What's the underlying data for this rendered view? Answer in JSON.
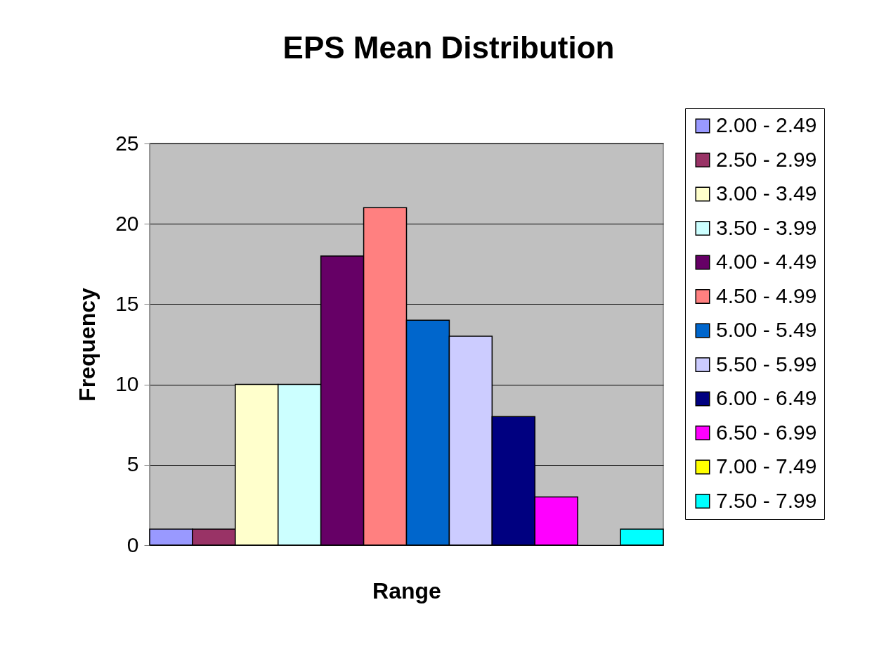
{
  "chart_data": {
    "type": "bar",
    "title": "EPS Mean Distribution",
    "xlabel": "Range",
    "ylabel": "Frequency",
    "categories": [
      null
    ],
    "series": [
      {
        "name": "2.00 - 2.49",
        "color": "#9999ff",
        "values": [
          1
        ]
      },
      {
        "name": "2.50 - 2.99",
        "color": "#993366",
        "values": [
          1
        ]
      },
      {
        "name": "3.00 - 3.49",
        "color": "#ffffcc",
        "values": [
          10
        ]
      },
      {
        "name": "3.50 - 3.99",
        "color": "#ccffff",
        "values": [
          10
        ]
      },
      {
        "name": "4.00 - 4.49",
        "color": "#660066",
        "values": [
          18
        ]
      },
      {
        "name": "4.50 - 4.99",
        "color": "#ff8080",
        "values": [
          21
        ]
      },
      {
        "name": "5.00 - 5.49",
        "color": "#0066cc",
        "values": [
          14
        ]
      },
      {
        "name": "5.50 - 5.99",
        "color": "#ccccff",
        "values": [
          13
        ]
      },
      {
        "name": "6.00 - 6.49",
        "color": "#000080",
        "values": [
          8
        ]
      },
      {
        "name": "6.50 - 6.99",
        "color": "#ff00ff",
        "values": [
          3
        ]
      },
      {
        "name": "7.00 - 7.49",
        "color": "#ffff00",
        "values": [
          0
        ]
      },
      {
        "name": "7.50 - 7.99",
        "color": "#00ffff",
        "values": [
          1
        ]
      }
    ],
    "ylim": [
      0,
      25
    ],
    "yticks": [
      0,
      5,
      10,
      15,
      20,
      25
    ],
    "grid": "y",
    "legend": "right",
    "tick_labels": "y"
  }
}
